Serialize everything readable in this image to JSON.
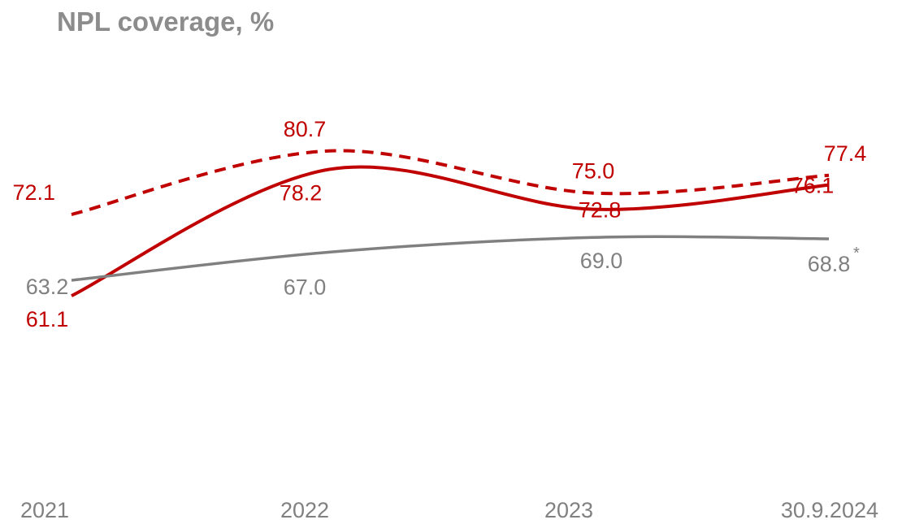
{
  "title": "NPL coverage, %",
  "colors": {
    "red": "#c00000",
    "grey": "#808080",
    "title": "#8c8c8c"
  },
  "chart_data": {
    "type": "line",
    "title": "NPL coverage, %",
    "categories": [
      "2021",
      "2022",
      "2023",
      "30.9.2024"
    ],
    "series": [
      {
        "values": [
          72.1,
          80.7,
          75.0,
          77.4
        ],
        "labels": [
          "72.1",
          "80.7",
          "75.0",
          "77.4"
        ],
        "color": "#c00000",
        "style": "dashed"
      },
      {
        "values": [
          61.1,
          78.2,
          72.8,
          76.1
        ],
        "labels": [
          "61.1",
          "78.2",
          "72.8",
          "76.1"
        ],
        "color": "#c00000",
        "style": "solid"
      },
      {
        "values": [
          63.2,
          67.0,
          69.0,
          68.8
        ],
        "labels": [
          "63.2",
          "67.0",
          "69.0",
          "68.8"
        ],
        "color": "#808080",
        "style": "solid"
      }
    ],
    "footnote_marker": "*",
    "grid": false,
    "legend": "none"
  }
}
